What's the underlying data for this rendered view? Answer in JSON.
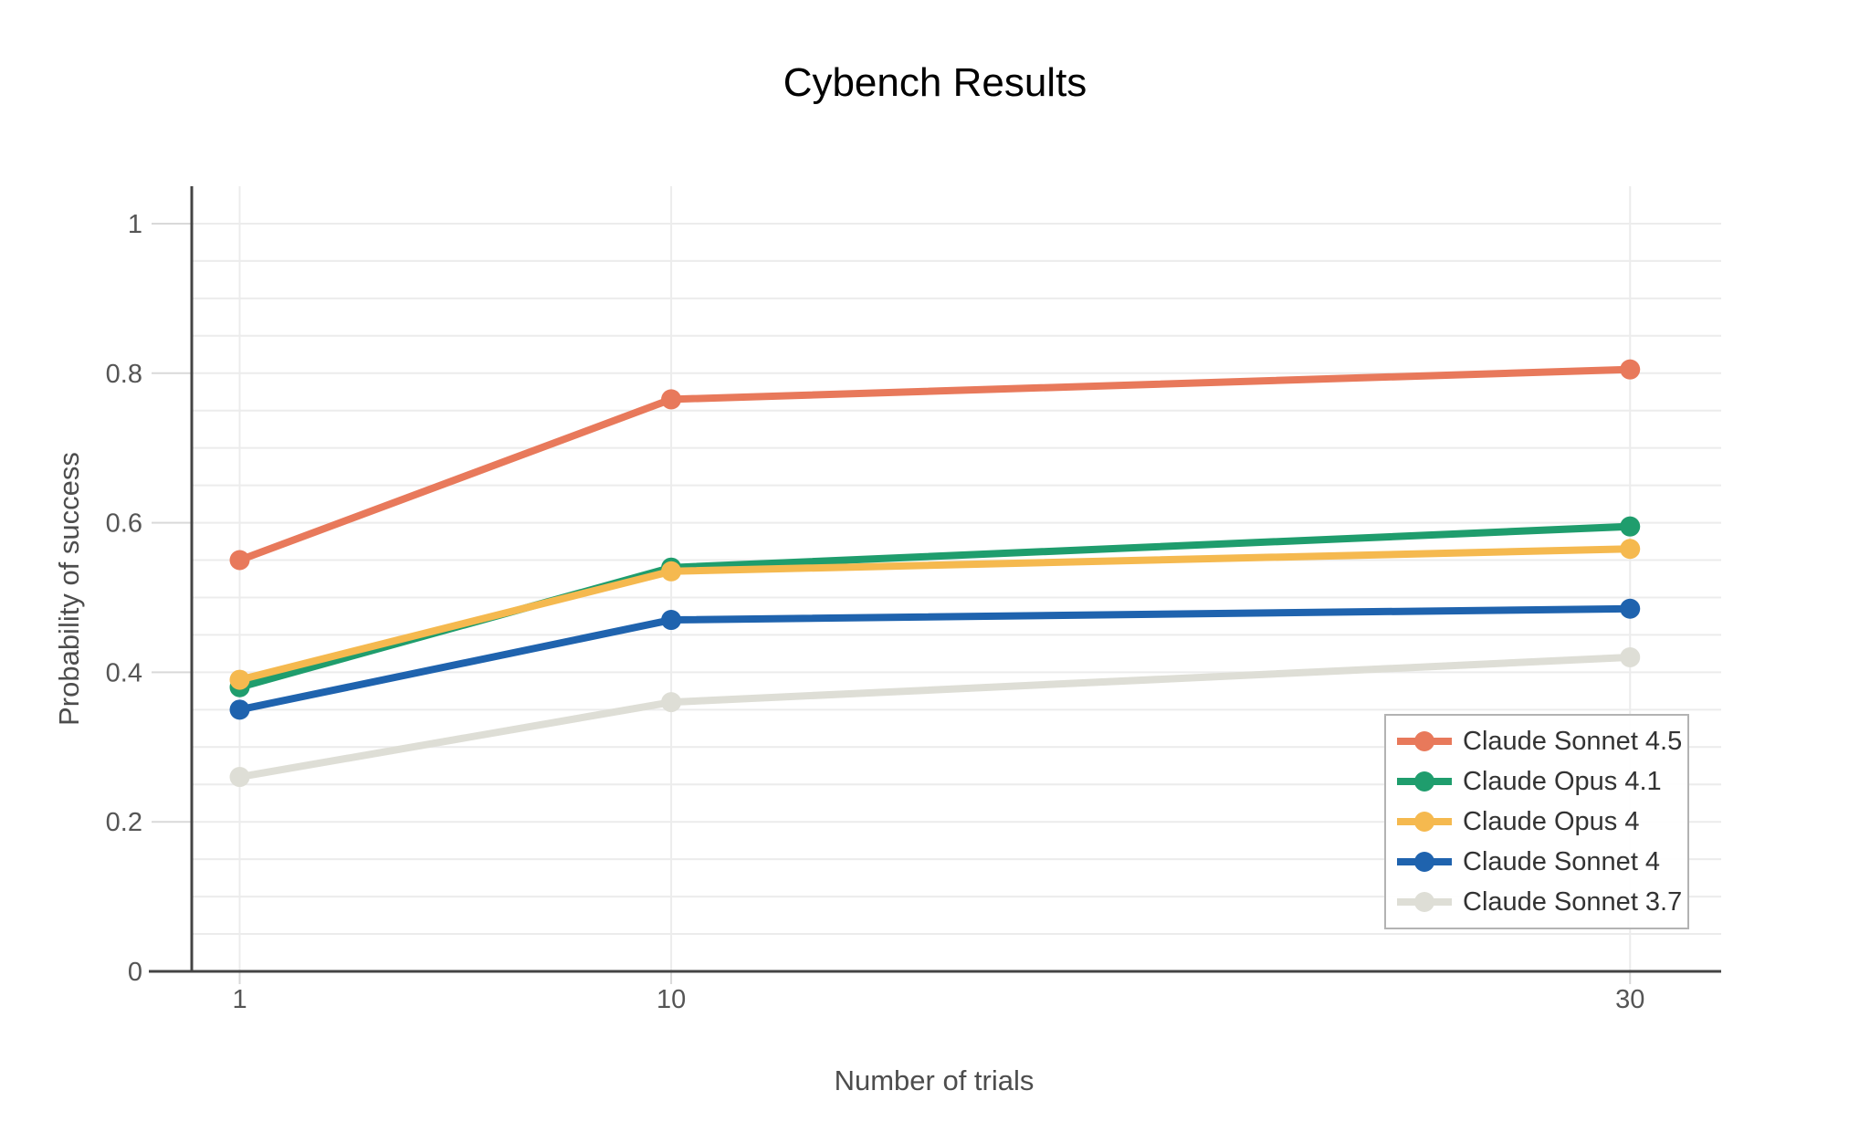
{
  "chart_data": {
    "type": "line",
    "title": "Cybench Results",
    "xlabel": "Number of trials",
    "ylabel": "Probability of success",
    "x": [
      1,
      10,
      30
    ],
    "series": [
      {
        "name": "Claude Sonnet 4.5",
        "color": "#E8795B",
        "values": [
          0.55,
          0.765,
          0.805
        ]
      },
      {
        "name": "Claude Opus 4.1",
        "color": "#1F9D6D",
        "values": [
          0.38,
          0.54,
          0.595
        ]
      },
      {
        "name": "Claude Opus 4",
        "color": "#F5B94F",
        "values": [
          0.39,
          0.535,
          0.565
        ]
      },
      {
        "name": "Claude Sonnet 4",
        "color": "#1F63AE",
        "values": [
          0.35,
          0.47,
          0.485
        ]
      },
      {
        "name": "Claude Sonnet 3.7",
        "color": "#DEDED6",
        "values": [
          0.26,
          0.36,
          0.42
        ]
      }
    ],
    "xlim": [
      0,
      31.9
    ],
    "ylim": [
      0,
      1.05
    ],
    "xticks": [
      1,
      10,
      30
    ],
    "xtick_labels": [
      "1",
      "10",
      "30"
    ],
    "yticks": [
      0,
      0.2,
      0.4,
      0.6,
      0.8,
      1
    ],
    "ytick_labels": [
      "0",
      "0.2",
      "0.4",
      "0.6",
      "0.8",
      "1"
    ],
    "grid": true,
    "grid_step": 0.05,
    "grid_max": 1.0,
    "legend_position": "bottom-right",
    "colors": {
      "axis_line": "#444444",
      "grid": "#ececec",
      "tick": "#d9d9d9",
      "tick_label": "#555555",
      "axis_title": "#4d4d4d",
      "title": "#000000",
      "legend_border": "#b3b3b3",
      "legend_text": "#333333",
      "background": "#ffffff"
    }
  }
}
